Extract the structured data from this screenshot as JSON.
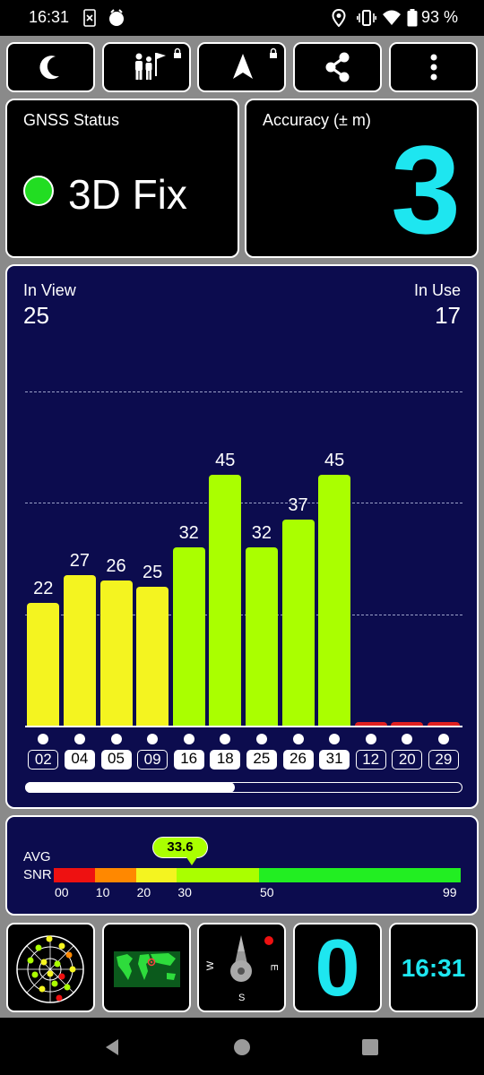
{
  "status_bar": {
    "time": "16:31",
    "battery_percent": "93 %",
    "icons": [
      "sim-icon",
      "alarm-icon",
      "location-icon",
      "vibrate-icon",
      "wifi-icon",
      "battery-icon"
    ]
  },
  "toolbar": {
    "buttons": [
      {
        "name": "night-mode",
        "icon": "moon-icon"
      },
      {
        "name": "hikers-mode",
        "icon": "hikers-flag-icon",
        "locked": true
      },
      {
        "name": "navigation",
        "icon": "navigation-arrow-icon",
        "locked": true
      },
      {
        "name": "share",
        "icon": "share-icon"
      },
      {
        "name": "more",
        "icon": "more-vertical-icon"
      }
    ]
  },
  "gnss": {
    "title": "GNSS Status",
    "status": "3D Fix",
    "status_color": "#22dd22"
  },
  "accuracy": {
    "title": "Accuracy (± m)",
    "value": "3",
    "color": "#1ee6f0"
  },
  "sat_panel": {
    "in_view_label": "In View",
    "in_view": "25",
    "in_use_label": "In Use",
    "in_use": "17",
    "scroll_position": 0.48
  },
  "chart_data": {
    "type": "bar",
    "categories": [
      "02",
      "04",
      "05",
      "09",
      "16",
      "18",
      "25",
      "26",
      "31",
      "12",
      "20",
      "29"
    ],
    "values": [
      22,
      27,
      26,
      25,
      32,
      45,
      32,
      37,
      45,
      0,
      0,
      0
    ],
    "in_use": [
      false,
      true,
      true,
      false,
      true,
      true,
      true,
      true,
      true,
      false,
      false,
      false
    ],
    "ylim": [
      0,
      60
    ],
    "gridlines": [
      20,
      40,
      60
    ],
    "colors": {
      "weak": "#f4f420",
      "good": "#aaff00",
      "none": "#e02020"
    }
  },
  "snr": {
    "avg_label": "AVG",
    "snr_label": "SNR",
    "value": "33.6",
    "ticks": [
      "00",
      "10",
      "20",
      "30",
      "50",
      "99"
    ],
    "segments": [
      {
        "color": "#ee1111"
      },
      {
        "color": "#ff8800"
      },
      {
        "color": "#f4f420"
      },
      {
        "color": "#aaff00"
      },
      {
        "color": "#22ee22"
      }
    ]
  },
  "widgets": {
    "radar": "satellite-radar-icon",
    "map": "world-map-icon",
    "compass": {
      "icon": "compass-icon",
      "w": "W",
      "e": "E",
      "s": "S"
    },
    "speed": "0",
    "clock": "16:31"
  },
  "nav": {
    "icons": [
      "back-icon",
      "home-icon",
      "recents-icon"
    ]
  }
}
